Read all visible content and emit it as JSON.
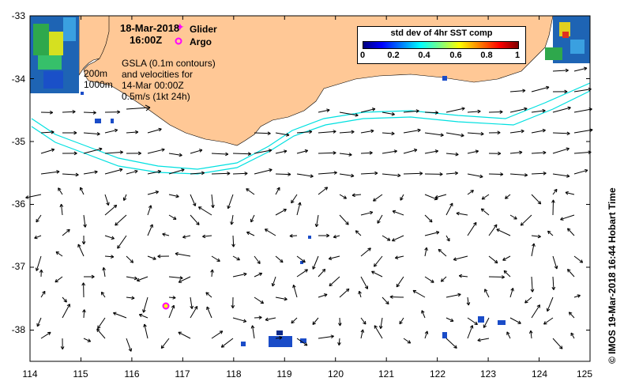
{
  "header": {
    "date": "18-Mar-2018",
    "time": "16:00Z"
  },
  "markers": {
    "glider_label": "Glider",
    "argo_label": "Argo",
    "glider_color": "#ff00ff",
    "argo_color": "#ff00ff"
  },
  "annotations": {
    "depth_200": "200m",
    "depth_1000": "1000m",
    "gsla_line1": "GSLA (0.1m contours)",
    "gsla_line2": "and velocities for",
    "gsla_line3": "14-Mar 00:00Z",
    "scale_label": "0.5m/s (1kt 24h)"
  },
  "colorbar": {
    "title": "std dev of 4hr SST comp",
    "ticks": [
      "0",
      "0.2",
      "0.4",
      "0.6",
      "0.8",
      "1"
    ]
  },
  "axes": {
    "x_ticks": [
      "114",
      "115",
      "116",
      "117",
      "118",
      "119",
      "120",
      "121",
      "122",
      "123",
      "124",
      "125"
    ],
    "y_ticks": [
      "-33",
      "-34",
      "-35",
      "-36",
      "-37",
      "-38"
    ],
    "lon_range": [
      114,
      125
    ],
    "lat_range": [
      -38.5,
      -33
    ]
  },
  "credit": "© IMOS 19-Mar-2018 16:44 Hobart Time",
  "colors": {
    "land": "#ffc896",
    "isobath": "#00e0e0",
    "arrow": "#000000",
    "frame": "#000000"
  },
  "argo_position": {
    "lon": 116.7,
    "lat": -37.6
  }
}
